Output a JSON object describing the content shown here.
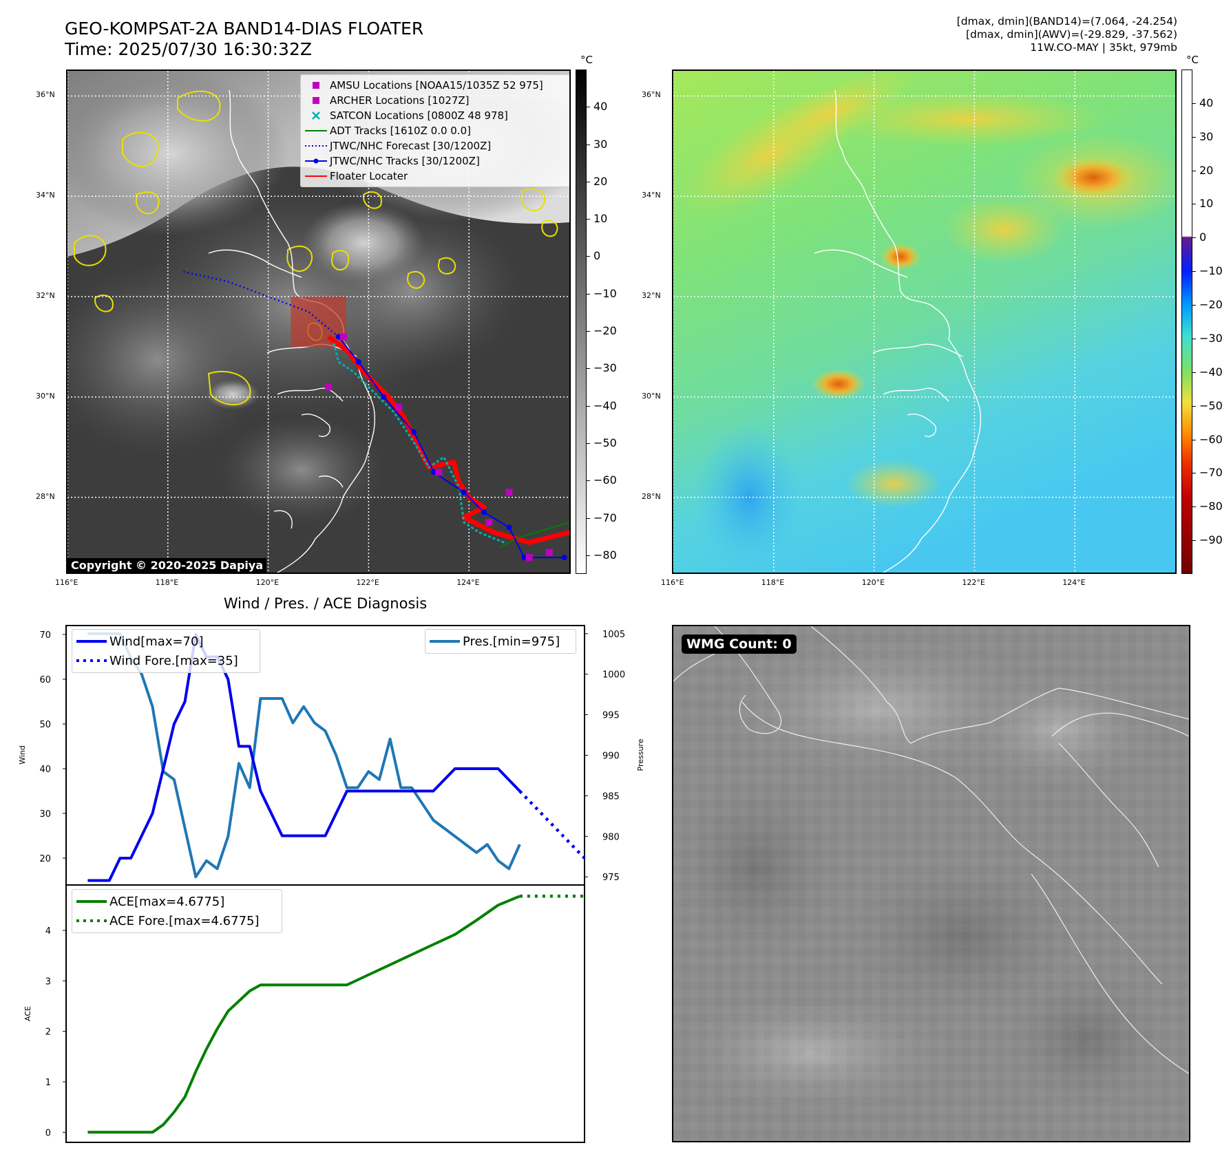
{
  "header": {
    "title": "GEO-KOMPSAT-2A BAND14-DIAS FLOATER",
    "time": "Time: 2025/07/30 16:30:32Z",
    "info_band14": "[dmax, dmin](BAND14)=(7.064, -24.254)",
    "info_awv": "[dmax, dmin](AWV)=(-29.829, -37.562)",
    "info_storm": "11W.CO-MAY | 35kt, 979mb"
  },
  "map": {
    "lon_ticks": [
      "116°E",
      "118°E",
      "120°E",
      "122°E",
      "124°E"
    ],
    "lat_ticks": [
      "28°N",
      "30°N",
      "32°N",
      "34°N",
      "36°N"
    ],
    "lon_values": [
      116,
      118,
      120,
      122,
      124
    ],
    "lat_values": [
      28,
      30,
      32,
      34,
      36
    ],
    "lon_range": [
      116,
      126
    ],
    "lat_range": [
      26.5,
      36.5
    ],
    "grid": true,
    "copyright": "Copyright © 2020-2025 Dapiya",
    "legend": [
      {
        "label": "AMSU Locations [NOAA15/1035Z 52 975]",
        "marker": "square",
        "color": "#c000c0"
      },
      {
        "label": "ARCHER Locations [1027Z]",
        "marker": "square",
        "color": "#c000c0"
      },
      {
        "label": "SATCON Locations [0800Z 48 978]",
        "marker": "x",
        "color": "#00b0b0"
      },
      {
        "label": "ADT Tracks [1610Z 0.0 0.0]",
        "marker": "line",
        "color": "#008000"
      },
      {
        "label": "JTWC/NHC Forecast [30/1200Z]",
        "marker": "dotted",
        "color": "#0000ee"
      },
      {
        "label": "JTWC/NHC Tracks [30/1200Z]",
        "marker": "line-dot",
        "color": "#0000ee"
      },
      {
        "label": "Floater Locater",
        "marker": "line",
        "color": "#ff0000"
      }
    ],
    "floater_box": {
      "lon": [
        120.45,
        121.55
      ],
      "lat": [
        31.0,
        32.0
      ],
      "color": "#c0392b"
    }
  },
  "colorbar_gray": {
    "unit": "°C",
    "ticks": [
      "40",
      "30",
      "20",
      "10",
      "0",
      "−10",
      "−20",
      "−30",
      "−40",
      "−50",
      "−60",
      "−70",
      "−80"
    ],
    "tick_values": [
      40,
      30,
      20,
      10,
      0,
      -10,
      -20,
      -30,
      -40,
      -50,
      -60,
      -70,
      -80
    ],
    "range": [
      -85,
      50
    ]
  },
  "colorbar_color": {
    "unit": "°C",
    "ticks": [
      "40",
      "30",
      "20",
      "10",
      "0",
      "−10",
      "−20",
      "−30",
      "−40",
      "−50",
      "−60",
      "−70",
      "−80",
      "−90"
    ],
    "tick_values": [
      40,
      30,
      20,
      10,
      0,
      -10,
      -20,
      -30,
      -40,
      -50,
      -60,
      -70,
      -80,
      -90
    ],
    "range": [
      -100,
      50
    ]
  },
  "tracks": {
    "jtwc_track": {
      "color": "#0000ee",
      "points": [
        [
          125.9,
          26.8
        ],
        [
          125.1,
          26.8
        ],
        [
          124.8,
          27.4
        ],
        [
          124.3,
          27.7
        ],
        [
          123.9,
          28.1
        ],
        [
          123.3,
          28.5
        ],
        [
          122.9,
          29.3
        ],
        [
          122.3,
          30.0
        ],
        [
          121.8,
          30.7
        ],
        [
          121.4,
          31.2
        ]
      ]
    },
    "jtwc_forecast": {
      "color": "#0000ee",
      "points": [
        [
          121.4,
          31.2
        ],
        [
          120.8,
          31.7
        ],
        [
          120.0,
          32.0
        ],
        [
          119.2,
          32.3
        ],
        [
          118.3,
          32.5
        ]
      ]
    },
    "satcon": {
      "color": "#00b0b0",
      "points": [
        [
          124.7,
          27.1
        ],
        [
          124.2,
          27.3
        ],
        [
          123.9,
          27.5
        ],
        [
          123.8,
          28.2
        ],
        [
          123.5,
          28.8
        ],
        [
          123.2,
          28.6
        ],
        [
          122.9,
          29.1
        ],
        [
          122.5,
          29.7
        ],
        [
          122.0,
          30.2
        ],
        [
          121.7,
          30.5
        ],
        [
          121.4,
          30.7
        ],
        [
          121.3,
          31.1
        ]
      ]
    },
    "floater": {
      "color": "#ff0000",
      "points": [
        [
          126.0,
          27.3
        ],
        [
          125.2,
          27.1
        ],
        [
          124.5,
          27.3
        ],
        [
          123.9,
          27.6
        ],
        [
          124.3,
          27.8
        ],
        [
          124.0,
          28.0
        ],
        [
          123.8,
          28.3
        ],
        [
          123.7,
          28.7
        ],
        [
          123.2,
          28.6
        ],
        [
          122.9,
          29.2
        ],
        [
          122.7,
          29.6
        ],
        [
          122.4,
          30.0
        ],
        [
          121.9,
          30.5
        ],
        [
          121.6,
          30.9
        ],
        [
          121.2,
          31.2
        ]
      ]
    },
    "adt": {
      "color": "#008000",
      "points": [
        [
          126.0,
          27.5
        ],
        [
          125.0,
          27.2
        ],
        [
          124.6,
          27.0
        ]
      ]
    },
    "amsu": [
      [
        121.2,
        30.2
      ],
      [
        122.6,
        29.8
      ],
      [
        123.4,
        28.5
      ],
      [
        124.4,
        27.5
      ],
      [
        124.8,
        28.1
      ],
      [
        125.2,
        26.8
      ],
      [
        125.6,
        26.9
      ],
      [
        121.5,
        31.2
      ]
    ]
  },
  "diag": {
    "title": "Wind / Pres. / ACE Diagnosis",
    "wmg_label": "WMG Count: 0"
  },
  "chart_data": [
    {
      "type": "line",
      "title": "Wind / Pres. / ACE Diagnosis",
      "ylabel": "Wind",
      "y2label": "Pressure",
      "xlim": [
        -1,
        23
      ],
      "ylim": [
        14,
        72
      ],
      "y2lim": [
        974,
        1006
      ],
      "ytick_labels": [
        "20",
        "30",
        "40",
        "50",
        "60",
        "70"
      ],
      "ytick_values": [
        20,
        30,
        40,
        50,
        60,
        70
      ],
      "y2tick_labels": [
        "975",
        "980",
        "985",
        "990",
        "995",
        "1000",
        "1005"
      ],
      "y2tick_values": [
        975,
        980,
        985,
        990,
        995,
        1000,
        1005
      ],
      "series": [
        {
          "name": "Wind[max=70]",
          "axis": "left",
          "style": "solid",
          "color": "#0000ee",
          "x": [
            0,
            1,
            1.5,
            2,
            2.5,
            3,
            3.5,
            4,
            4.5,
            5,
            5.5,
            6,
            6.5,
            7,
            7.5,
            8,
            8.5,
            9,
            10,
            11,
            12,
            13,
            14,
            15,
            16,
            17,
            18,
            19,
            20
          ],
          "values": [
            15,
            15,
            20,
            20,
            25,
            30,
            40,
            50,
            55,
            70,
            65,
            65,
            60,
            45,
            45,
            35,
            30,
            25,
            25,
            25,
            35,
            35,
            35,
            35,
            35,
            40,
            40,
            40,
            35
          ]
        },
        {
          "name": "Wind Fore.[max=35]",
          "axis": "left",
          "style": "dotted",
          "color": "#0000ee",
          "x": [
            20,
            21,
            22,
            23
          ],
          "values": [
            35,
            30,
            25,
            20
          ]
        },
        {
          "name": "Pres.[min=975]",
          "axis": "right",
          "style": "solid",
          "color": "#1f77b4",
          "x": [
            0,
            1,
            1.5,
            2,
            2.5,
            3,
            3.5,
            4,
            4.5,
            5,
            5.5,
            6,
            6.5,
            7,
            7.5,
            8,
            8.5,
            9,
            9.5,
            10,
            10.5,
            11,
            11.5,
            12,
            12.5,
            13,
            13.5,
            14,
            14.5,
            15,
            15.5,
            16,
            16.5,
            17,
            17.5,
            18,
            18.5,
            19,
            19.5,
            20
          ],
          "values": [
            1005,
            1005,
            1005,
            1002,
            1000,
            996,
            988,
            987,
            981,
            975,
            977,
            976,
            980,
            989,
            986,
            997,
            997,
            997,
            994,
            996,
            994,
            993,
            990,
            986,
            986,
            988,
            987,
            992,
            986,
            986,
            984,
            982,
            981,
            980,
            979,
            978,
            979,
            977,
            976,
            979
          ]
        }
      ]
    },
    {
      "type": "line",
      "ylabel": "ACE",
      "xlim": [
        -1,
        23
      ],
      "ylim": [
        -0.2,
        4.9
      ],
      "ytick_labels": [
        "0",
        "1",
        "2",
        "3",
        "4"
      ],
      "ytick_values": [
        0,
        1,
        2,
        3,
        4
      ],
      "series": [
        {
          "name": "ACE[max=4.6775]",
          "style": "solid",
          "color": "#008000",
          "x": [
            0,
            1,
            2,
            3,
            3.5,
            4,
            4.5,
            5,
            5.5,
            6,
            6.5,
            7,
            7.5,
            8,
            8.5,
            9,
            10,
            11,
            12,
            13,
            14,
            15,
            16,
            17,
            18,
            19,
            20
          ],
          "values": [
            0,
            0,
            0,
            0,
            0.15,
            0.4,
            0.7,
            1.2,
            1.65,
            2.05,
            2.4,
            2.6,
            2.8,
            2.92,
            2.92,
            2.92,
            2.92,
            2.92,
            2.92,
            3.12,
            3.32,
            3.52,
            3.72,
            3.92,
            4.2,
            4.5,
            4.6775
          ]
        },
        {
          "name": "ACE Fore.[max=4.6775]",
          "style": "dotted",
          "color": "#008000",
          "x": [
            20,
            21,
            22,
            23
          ],
          "values": [
            4.6775,
            4.6775,
            4.6775,
            4.6775
          ]
        }
      ]
    }
  ]
}
